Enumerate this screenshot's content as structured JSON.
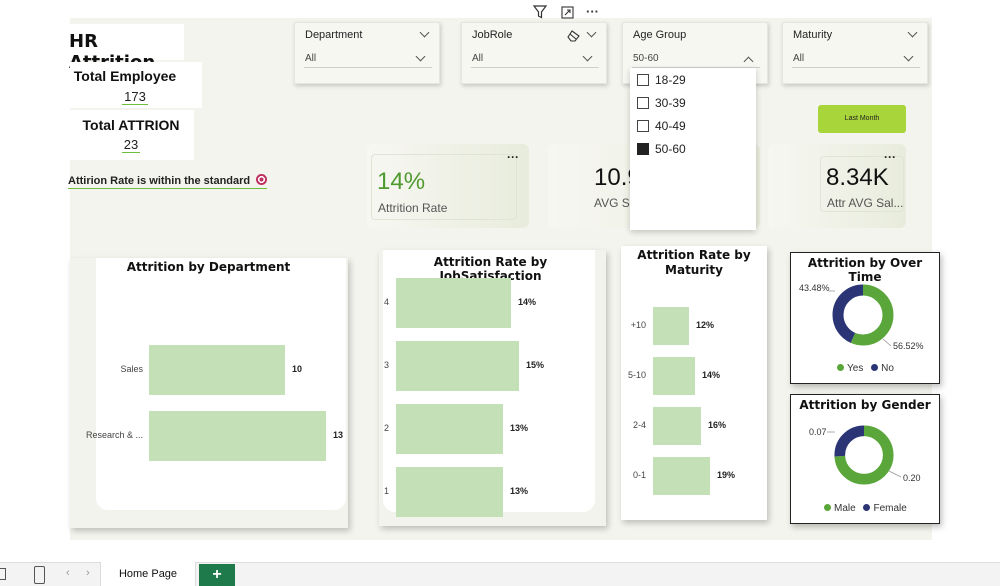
{
  "header": {
    "title": "HR Attrition",
    "total_employee_label": "Total Employee",
    "total_employee_value": "173",
    "total_attrition_label": "Total ATTRION",
    "total_attrition_value": "23",
    "status_text": "Attirion Rate is within the standard"
  },
  "toolbar": {
    "filter_icon": "filter-icon",
    "focus_icon": "focus-mode-icon",
    "more_icon": "more-options-icon"
  },
  "slicers": {
    "department": {
      "title": "Department",
      "value": "All"
    },
    "jobrole": {
      "title": "JobRole",
      "value": "All"
    },
    "age_group": {
      "title": "Age Group",
      "value": "50-60",
      "options": [
        {
          "label": "18-29",
          "checked": false
        },
        {
          "label": "30-39",
          "checked": false
        },
        {
          "label": "40-49",
          "checked": false
        },
        {
          "label": "50-60",
          "checked": true
        }
      ]
    },
    "maturity": {
      "title": "Maturity",
      "value": "All"
    }
  },
  "last_month_button": "Last Month",
  "cards": {
    "attrition_rate": {
      "value": "14%",
      "label": "Attrition Rate"
    },
    "avg_salary": {
      "value": "10.9",
      "label": "AVG Sa"
    },
    "attr_avg_salary": {
      "value": "8.34K",
      "label": "Attr AVG Sal..."
    }
  },
  "colors": {
    "green": "#5aa63a",
    "navy": "#2b3475",
    "bar": "#c4e0b6",
    "button": "#a8d63a"
  },
  "chart_data": [
    {
      "type": "bar",
      "title": "Attrition by Department",
      "categories": [
        "Sales",
        "Research & ..."
      ],
      "values": [
        10,
        13
      ],
      "value_labels": [
        "10",
        "13"
      ]
    },
    {
      "type": "bar",
      "title": "Attrition Rate by JobSatisfaction",
      "categories": [
        "4",
        "3",
        "2",
        "1"
      ],
      "values": [
        14,
        15,
        13,
        13
      ],
      "value_labels": [
        "14%",
        "15%",
        "13%",
        "13%"
      ]
    },
    {
      "type": "bar",
      "title": "Attrition Rate by Maturity",
      "categories": [
        "+10",
        "5-10",
        "2-4",
        "0-1"
      ],
      "values": [
        12,
        14,
        16,
        19
      ],
      "value_labels": [
        "12%",
        "14%",
        "16%",
        "19%"
      ]
    },
    {
      "type": "pie",
      "title": "Attrition by Over Time",
      "series": [
        {
          "name": "Yes",
          "value": 56.52,
          "label": "56.52%",
          "color": "#5aa63a"
        },
        {
          "name": "No",
          "value": 43.48,
          "label": "43.48%",
          "color": "#2b3475"
        }
      ]
    },
    {
      "type": "pie",
      "title": "Attrition by Gender",
      "series": [
        {
          "name": "Male",
          "value": 0.2,
          "label": "0.20",
          "color": "#5aa63a"
        },
        {
          "name": "Female",
          "value": 0.07,
          "label": "0.07",
          "color": "#2b3475"
        }
      ]
    }
  ],
  "tabs": {
    "home": "Home Page",
    "add": "+"
  }
}
